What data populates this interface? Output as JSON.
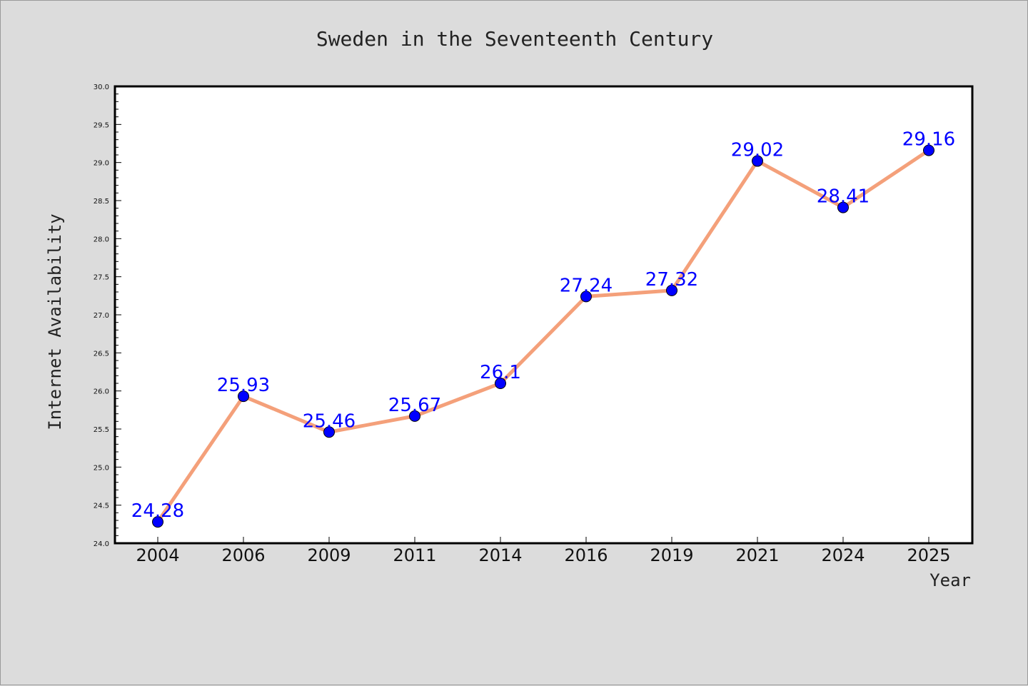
{
  "chart_data": {
    "type": "line",
    "title": "Sweden in the Seventeenth Century",
    "xlabel": "Year",
    "ylabel": "Internet Availability",
    "categories": [
      "2004",
      "2006",
      "2009",
      "2011",
      "2014",
      "2016",
      "2019",
      "2021",
      "2024",
      "2025"
    ],
    "series": [
      {
        "values": [
          24.28,
          25.93,
          25.46,
          25.67,
          26.1,
          27.24,
          27.32,
          29.02,
          28.41,
          29.16
        ]
      }
    ],
    "data_labels": [
      "24.28",
      "25.93",
      "25.46",
      "25.67",
      "26.1",
      "27.24",
      "27.32",
      "29.02",
      "28.41",
      "29.16"
    ],
    "ylim": [
      24.0,
      30.0
    ],
    "yticks": [
      "24.0",
      "24.5",
      "25.0",
      "25.5",
      "26.0",
      "26.5",
      "27.0",
      "27.5",
      "28.0",
      "28.5",
      "29.0",
      "29.5",
      "30.0"
    ],
    "grid": false,
    "legend": "none",
    "colors": {
      "line": "#f4a07a",
      "marker": "#0000ff",
      "label": "#0000ff",
      "plot_background": "#ffffff",
      "figure_background": "#dcdcdc"
    }
  }
}
